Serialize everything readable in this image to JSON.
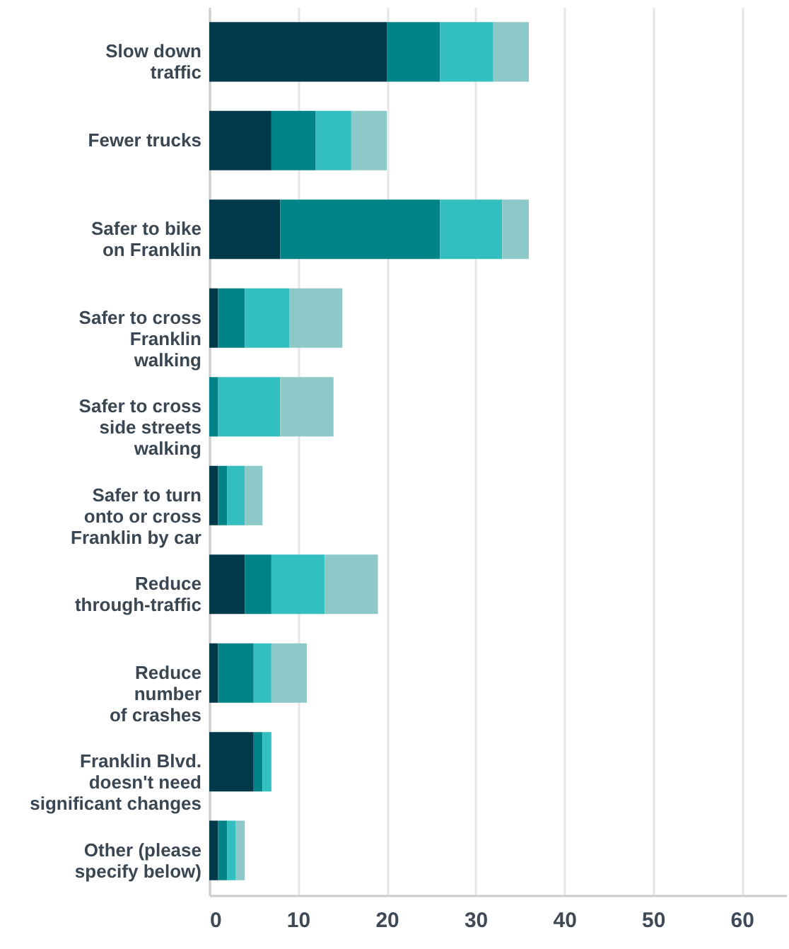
{
  "chart_data": {
    "type": "bar",
    "orientation": "horizontal",
    "stacked": true,
    "categories": [
      "Slow down\ntraffic",
      "Fewer trucks",
      "Safer to bike\non Franklin",
      "Safer to cross\nFranklin\nwalking",
      "Safer to cross\nside streets\nwalking",
      "Safer to turn\nonto or cross\nFranklin by car",
      "Reduce\nthrough-traffic",
      "Reduce\nnumber\nof crashes",
      "Franklin Blvd.\ndoesn't need\nsignificant changes",
      "Other (please\nspecify below)"
    ],
    "series": [
      {
        "color": "#003a4a",
        "values": [
          20,
          7,
          8,
          1,
          0,
          1,
          4,
          1,
          5,
          1
        ]
      },
      {
        "color": "#008488",
        "values": [
          6,
          5,
          18,
          3,
          1,
          1,
          3,
          4,
          1,
          1
        ]
      },
      {
        "color": "#33bec0",
        "values": [
          6,
          4,
          7,
          5,
          7,
          2,
          6,
          2,
          1,
          1
        ]
      },
      {
        "color": "#8ec9c9",
        "values": [
          4,
          4,
          3,
          6,
          6,
          2,
          6,
          4,
          0,
          1
        ]
      }
    ],
    "xlim": [
      0,
      65
    ],
    "xticks": [
      0,
      10,
      20,
      30,
      40,
      50,
      60
    ],
    "grid": "x"
  }
}
